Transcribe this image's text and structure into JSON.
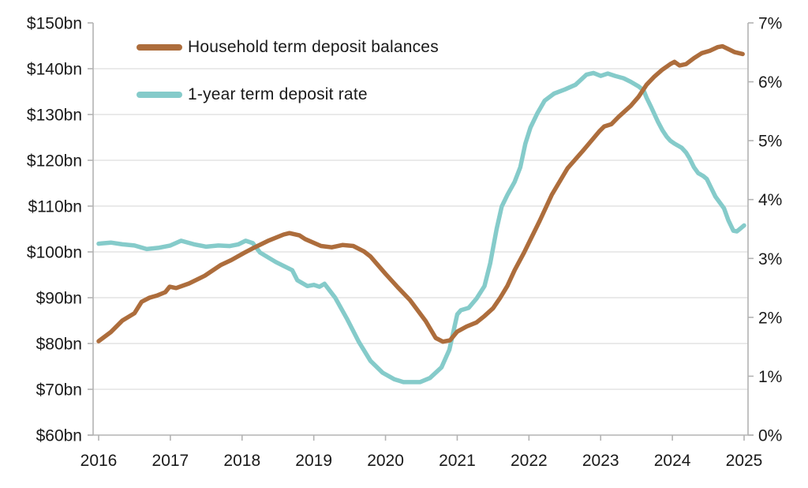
{
  "chart_data": {
    "type": "line",
    "title": "",
    "legend_position": "top-left-inside",
    "grid": "horizontal-only",
    "x_axis": {
      "label": "",
      "tick_labels": [
        "2016",
        "2017",
        "2018",
        "2019",
        "2020",
        "2021",
        "2022",
        "2023",
        "2024",
        "2025"
      ],
      "tick_values": [
        2016,
        2017,
        2018,
        2019,
        2020,
        2021,
        2022,
        2023,
        2024,
        2025
      ],
      "range": [
        2016,
        2025.05
      ]
    },
    "y_axis_left": {
      "label": "",
      "tick_labels": [
        "$150bn",
        "$140bn",
        "$130bn",
        "$120bn",
        "$110bn",
        "$100bn",
        "$90bn",
        "$80bn",
        "$70bn",
        "$60bn"
      ],
      "tick_values": [
        150,
        140,
        130,
        120,
        110,
        100,
        90,
        80,
        70,
        60
      ],
      "range": [
        60,
        150
      ],
      "gridline_values": [
        140,
        130,
        120,
        110,
        100,
        90,
        80,
        70
      ]
    },
    "y_axis_right": {
      "label": "",
      "tick_labels": [
        "7%",
        "6%",
        "5%",
        "4%",
        "3%",
        "2%",
        "1%",
        "0%"
      ],
      "tick_values": [
        7,
        6,
        5,
        4,
        3,
        2,
        1,
        0
      ],
      "range": [
        0,
        7
      ]
    },
    "series": [
      {
        "name": "Household term deposit balances",
        "axis": "left",
        "unit": "$bn",
        "color": "#ad6d3c",
        "points": [
          [
            2016.0,
            80.5
          ],
          [
            2016.17,
            82.5
          ],
          [
            2016.33,
            85.0
          ],
          [
            2016.5,
            86.6
          ],
          [
            2016.6,
            89.1
          ],
          [
            2016.71,
            90.0
          ],
          [
            2016.82,
            90.5
          ],
          [
            2016.93,
            91.2
          ],
          [
            2016.99,
            92.4
          ],
          [
            2017.08,
            92.1
          ],
          [
            2017.26,
            93.1
          ],
          [
            2017.48,
            94.8
          ],
          [
            2017.7,
            97.1
          ],
          [
            2017.85,
            98.2
          ],
          [
            2018.03,
            99.8
          ],
          [
            2018.14,
            100.7
          ],
          [
            2018.36,
            102.4
          ],
          [
            2018.58,
            103.8
          ],
          [
            2018.66,
            104.1
          ],
          [
            2018.8,
            103.6
          ],
          [
            2018.88,
            102.8
          ],
          [
            2019.1,
            101.3
          ],
          [
            2019.25,
            101.0
          ],
          [
            2019.4,
            101.5
          ],
          [
            2019.55,
            101.3
          ],
          [
            2019.7,
            100.1
          ],
          [
            2019.79,
            99.0
          ],
          [
            2020.0,
            95.2
          ],
          [
            2020.17,
            92.3
          ],
          [
            2020.34,
            89.5
          ],
          [
            2020.56,
            84.9
          ],
          [
            2020.7,
            81.2
          ],
          [
            2020.8,
            80.4
          ],
          [
            2020.9,
            80.7
          ],
          [
            2021.0,
            82.6
          ],
          [
            2021.13,
            83.7
          ],
          [
            2021.27,
            84.6
          ],
          [
            2021.38,
            86.0
          ],
          [
            2021.5,
            87.7
          ],
          [
            2021.6,
            90.0
          ],
          [
            2021.7,
            92.6
          ],
          [
            2021.8,
            96.0
          ],
          [
            2021.93,
            99.8
          ],
          [
            2022.04,
            103.3
          ],
          [
            2022.15,
            106.8
          ],
          [
            2022.32,
            112.5
          ],
          [
            2022.54,
            118.3
          ],
          [
            2022.76,
            122.2
          ],
          [
            2022.98,
            126.3
          ],
          [
            2023.05,
            127.4
          ],
          [
            2023.15,
            127.9
          ],
          [
            2023.25,
            129.5
          ],
          [
            2023.42,
            131.9
          ],
          [
            2023.53,
            133.9
          ],
          [
            2023.64,
            136.5
          ],
          [
            2023.75,
            138.3
          ],
          [
            2023.86,
            139.8
          ],
          [
            2023.97,
            141.0
          ],
          [
            2024.03,
            141.5
          ],
          [
            2024.1,
            140.7
          ],
          [
            2024.19,
            141.0
          ],
          [
            2024.3,
            142.3
          ],
          [
            2024.41,
            143.4
          ],
          [
            2024.52,
            143.9
          ],
          [
            2024.63,
            144.7
          ],
          [
            2024.7,
            144.9
          ],
          [
            2024.78,
            144.3
          ],
          [
            2024.87,
            143.6
          ],
          [
            2024.98,
            143.2
          ]
        ]
      },
      {
        "name": "1-year term deposit rate",
        "axis": "right",
        "unit": "%",
        "color": "#85cbca",
        "points": [
          [
            2016.0,
            3.25
          ],
          [
            2016.17,
            3.27
          ],
          [
            2016.33,
            3.24
          ],
          [
            2016.5,
            3.22
          ],
          [
            2016.67,
            3.16
          ],
          [
            2016.83,
            3.18
          ],
          [
            2017.0,
            3.22
          ],
          [
            2017.15,
            3.3
          ],
          [
            2017.33,
            3.24
          ],
          [
            2017.5,
            3.2
          ],
          [
            2017.67,
            3.22
          ],
          [
            2017.83,
            3.21
          ],
          [
            2017.95,
            3.24
          ],
          [
            2018.05,
            3.3
          ],
          [
            2018.15,
            3.26
          ],
          [
            2018.25,
            3.1
          ],
          [
            2018.47,
            2.94
          ],
          [
            2018.6,
            2.86
          ],
          [
            2018.7,
            2.8
          ],
          [
            2018.77,
            2.63
          ],
          [
            2018.91,
            2.53
          ],
          [
            2019.0,
            2.55
          ],
          [
            2019.08,
            2.52
          ],
          [
            2019.15,
            2.57
          ],
          [
            2019.3,
            2.33
          ],
          [
            2019.46,
            1.98
          ],
          [
            2019.63,
            1.58
          ],
          [
            2019.79,
            1.26
          ],
          [
            2019.96,
            1.06
          ],
          [
            2020.12,
            0.95
          ],
          [
            2020.25,
            0.9
          ],
          [
            2020.48,
            0.9
          ],
          [
            2020.62,
            0.97
          ],
          [
            2020.78,
            1.15
          ],
          [
            2020.89,
            1.45
          ],
          [
            2021.0,
            2.05
          ],
          [
            2021.05,
            2.12
          ],
          [
            2021.16,
            2.16
          ],
          [
            2021.27,
            2.32
          ],
          [
            2021.38,
            2.53
          ],
          [
            2021.46,
            2.92
          ],
          [
            2021.55,
            3.5
          ],
          [
            2021.62,
            3.88
          ],
          [
            2021.7,
            4.08
          ],
          [
            2021.8,
            4.3
          ],
          [
            2021.88,
            4.55
          ],
          [
            2021.95,
            4.95
          ],
          [
            2022.02,
            5.22
          ],
          [
            2022.12,
            5.47
          ],
          [
            2022.22,
            5.68
          ],
          [
            2022.35,
            5.8
          ],
          [
            2022.5,
            5.87
          ],
          [
            2022.65,
            5.95
          ],
          [
            2022.8,
            6.12
          ],
          [
            2022.9,
            6.15
          ],
          [
            2023.0,
            6.1
          ],
          [
            2023.1,
            6.14
          ],
          [
            2023.2,
            6.1
          ],
          [
            2023.32,
            6.06
          ],
          [
            2023.42,
            6.0
          ],
          [
            2023.53,
            5.92
          ],
          [
            2023.6,
            5.85
          ],
          [
            2023.64,
            5.73
          ],
          [
            2023.7,
            5.58
          ],
          [
            2023.75,
            5.45
          ],
          [
            2023.8,
            5.32
          ],
          [
            2023.86,
            5.18
          ],
          [
            2023.92,
            5.07
          ],
          [
            2023.97,
            5.0
          ],
          [
            2024.03,
            4.95
          ],
          [
            2024.13,
            4.88
          ],
          [
            2024.19,
            4.8
          ],
          [
            2024.24,
            4.7
          ],
          [
            2024.3,
            4.55
          ],
          [
            2024.36,
            4.45
          ],
          [
            2024.43,
            4.4
          ],
          [
            2024.48,
            4.35
          ],
          [
            2024.54,
            4.2
          ],
          [
            2024.6,
            4.05
          ],
          [
            2024.66,
            3.95
          ],
          [
            2024.72,
            3.85
          ],
          [
            2024.78,
            3.65
          ],
          [
            2024.85,
            3.47
          ],
          [
            2024.9,
            3.46
          ],
          [
            2024.96,
            3.52
          ],
          [
            2025.0,
            3.56
          ]
        ]
      }
    ],
    "colors": {
      "background": "#ffffff",
      "gridline": "#e4e4e4",
      "axis_line": "#b3b3b3",
      "text": "#1a1a1a"
    }
  }
}
